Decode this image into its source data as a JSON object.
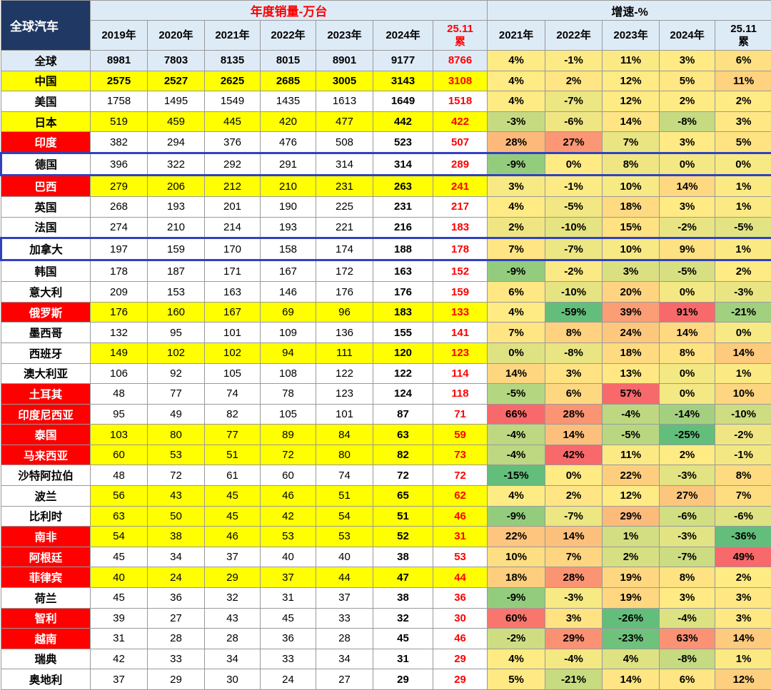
{
  "header": {
    "corner": "全球汽车",
    "sales_title": "年度销量-万台",
    "growth_title": "增速-%",
    "sales_years": [
      "2019年",
      "2020年",
      "2021年",
      "2022年",
      "2023年",
      "2024年",
      "25.11\n累"
    ],
    "growth_years": [
      "2021年",
      "2022年",
      "2023年",
      "2024年",
      "25.11\n累"
    ]
  },
  "colors": {
    "header_bg": "#DDEBF7",
    "corner_bg": "#1F3864",
    "accent_red": "#FF0000",
    "row_yellow": "#FFFF00",
    "global_row_blue": "#DEEBF7",
    "highlight_box_blue": "#3142BE",
    "scale_min_green": "#63BE7B",
    "scale_mid_yellow": "#FFEB84",
    "scale_max_red": "#F8696B"
  },
  "chart_data": {
    "type": "table",
    "title": "全球汽车 年度销量-万台 与 增速-%",
    "units": "万台",
    "sales_columns": [
      "2019年",
      "2020年",
      "2021年",
      "2022年",
      "2023年",
      "2024年",
      "25.11累"
    ],
    "growth_columns": [
      "2021年",
      "2022年",
      "2023年",
      "2024年",
      "25.11累"
    ],
    "rows": [
      {
        "region": "全球",
        "sales": [
          8981,
          7803,
          8135,
          8015,
          8901,
          9177,
          8766
        ],
        "growth_pct": [
          4,
          -1,
          11,
          3,
          6
        ],
        "style": {
          "label": "blue",
          "sales": "blue",
          "bold": true,
          "boxed": false
        }
      },
      {
        "region": "中国",
        "sales": [
          2575,
          2527,
          2625,
          2685,
          3005,
          3143,
          3108
        ],
        "growth_pct": [
          4,
          2,
          12,
          5,
          11
        ],
        "style": {
          "label": "yellow",
          "sales": "yellow",
          "bold": true,
          "boxed": false
        }
      },
      {
        "region": "美国",
        "sales": [
          1758,
          1495,
          1549,
          1435,
          1613,
          1649,
          1518
        ],
        "growth_pct": [
          4,
          -7,
          12,
          2,
          2
        ],
        "style": {
          "label": "white",
          "sales": "white",
          "bold": false,
          "boxed": false
        }
      },
      {
        "region": "日本",
        "sales": [
          519,
          459,
          445,
          420,
          477,
          442,
          422
        ],
        "growth_pct": [
          -3,
          -6,
          14,
          -8,
          3
        ],
        "style": {
          "label": "yellow",
          "sales": "yellow",
          "bold": false,
          "boxed": false
        }
      },
      {
        "region": "印度",
        "sales": [
          382,
          294,
          376,
          476,
          508,
          523,
          507
        ],
        "growth_pct": [
          28,
          27,
          7,
          3,
          5
        ],
        "style": {
          "label": "red",
          "sales": "white",
          "bold": false,
          "boxed": false
        }
      },
      {
        "region": "德国",
        "sales": [
          396,
          322,
          292,
          291,
          314,
          314,
          289
        ],
        "growth_pct": [
          -9,
          0,
          8,
          0,
          0
        ],
        "style": {
          "label": "white",
          "sales": "white",
          "bold": false,
          "boxed": true
        }
      },
      {
        "region": "巴西",
        "sales": [
          279,
          206,
          212,
          210,
          231,
          263,
          241
        ],
        "growth_pct": [
          3,
          -1,
          10,
          14,
          1
        ],
        "style": {
          "label": "red",
          "sales": "yellow",
          "bold": false,
          "boxed": false
        }
      },
      {
        "region": "英国",
        "sales": [
          268,
          193,
          201,
          190,
          225,
          231,
          217
        ],
        "growth_pct": [
          4,
          -5,
          18,
          3,
          1
        ],
        "style": {
          "label": "white",
          "sales": "white",
          "bold": false,
          "boxed": false
        }
      },
      {
        "region": "法国",
        "sales": [
          274,
          210,
          214,
          193,
          221,
          216,
          183
        ],
        "growth_pct": [
          2,
          -10,
          15,
          -2,
          -5
        ],
        "style": {
          "label": "white",
          "sales": "white",
          "bold": false,
          "boxed": false
        }
      },
      {
        "region": "加拿大",
        "sales": [
          197,
          159,
          170,
          158,
          174,
          188,
          178
        ],
        "growth_pct": [
          7,
          -7,
          10,
          9,
          1
        ],
        "style": {
          "label": "white",
          "sales": "white",
          "bold": false,
          "boxed": true
        }
      },
      {
        "region": "韩国",
        "sales": [
          178,
          187,
          171,
          167,
          172,
          163,
          152
        ],
        "growth_pct": [
          -9,
          -2,
          3,
          -5,
          2
        ],
        "style": {
          "label": "white",
          "sales": "white",
          "bold": false,
          "boxed": false
        }
      },
      {
        "region": "意大利",
        "sales": [
          209,
          153,
          163,
          146,
          176,
          176,
          159
        ],
        "growth_pct": [
          6,
          -10,
          20,
          0,
          -3
        ],
        "style": {
          "label": "white",
          "sales": "white",
          "bold": false,
          "boxed": false
        }
      },
      {
        "region": "俄罗斯",
        "sales": [
          176,
          160,
          167,
          69,
          96,
          183,
          133
        ],
        "growth_pct": [
          4,
          -59,
          39,
          91,
          -21
        ],
        "style": {
          "label": "red",
          "sales": "yellow",
          "bold": false,
          "boxed": false
        }
      },
      {
        "region": "墨西哥",
        "sales": [
          132,
          95,
          101,
          109,
          136,
          155,
          141
        ],
        "growth_pct": [
          7,
          8,
          24,
          14,
          0
        ],
        "style": {
          "label": "white",
          "sales": "white",
          "bold": false,
          "boxed": false
        }
      },
      {
        "region": "西班牙",
        "sales": [
          149,
          102,
          102,
          94,
          111,
          120,
          123
        ],
        "growth_pct": [
          0,
          -8,
          18,
          8,
          14
        ],
        "style": {
          "label": "white",
          "sales": "yellow",
          "bold": false,
          "boxed": false
        }
      },
      {
        "region": "澳大利亚",
        "sales": [
          106,
          92,
          105,
          108,
          122,
          122,
          114
        ],
        "growth_pct": [
          14,
          3,
          13,
          0,
          1
        ],
        "style": {
          "label": "white",
          "sales": "white",
          "bold": false,
          "boxed": false
        }
      },
      {
        "region": "土耳其",
        "sales": [
          48,
          77,
          74,
          78,
          123,
          124,
          118
        ],
        "growth_pct": [
          -5,
          6,
          57,
          0,
          10
        ],
        "style": {
          "label": "red",
          "sales": "white",
          "bold": false,
          "boxed": false
        }
      },
      {
        "region": "印度尼西亚",
        "sales": [
          95,
          49,
          82,
          105,
          101,
          87,
          71
        ],
        "growth_pct": [
          66,
          28,
          -4,
          -14,
          -10
        ],
        "style": {
          "label": "red",
          "sales": "white",
          "bold": false,
          "boxed": false
        }
      },
      {
        "region": "泰国",
        "sales": [
          103,
          80,
          77,
          89,
          84,
          63,
          59
        ],
        "growth_pct": [
          -4,
          14,
          -5,
          -25,
          -2
        ],
        "style": {
          "label": "red",
          "sales": "yellow",
          "bold": false,
          "boxed": false
        }
      },
      {
        "region": "马来西亚",
        "sales": [
          60,
          53,
          51,
          72,
          80,
          82,
          73
        ],
        "growth_pct": [
          -4,
          42,
          11,
          2,
          -1
        ],
        "style": {
          "label": "red",
          "sales": "yellow",
          "bold": false,
          "boxed": false
        }
      },
      {
        "region": "沙特阿拉伯",
        "sales": [
          48,
          72,
          61,
          60,
          74,
          72,
          72
        ],
        "growth_pct": [
          -15,
          0,
          22,
          -3,
          8
        ],
        "style": {
          "label": "white",
          "sales": "white",
          "bold": false,
          "boxed": false
        }
      },
      {
        "region": "波兰",
        "sales": [
          56,
          43,
          45,
          46,
          51,
          65,
          62
        ],
        "growth_pct": [
          4,
          2,
          12,
          27,
          7
        ],
        "style": {
          "label": "white",
          "sales": "yellow",
          "bold": false,
          "boxed": false
        }
      },
      {
        "region": "比利时",
        "sales": [
          63,
          50,
          45,
          42,
          54,
          51,
          46
        ],
        "growth_pct": [
          -9,
          -7,
          29,
          -6,
          -6
        ],
        "style": {
          "label": "white",
          "sales": "yellow",
          "bold": false,
          "boxed": false
        }
      },
      {
        "region": "南非",
        "sales": [
          54,
          38,
          46,
          53,
          53,
          52,
          31
        ],
        "growth_pct": [
          22,
          14,
          1,
          -3,
          -36
        ],
        "style": {
          "label": "red",
          "sales": "yellow",
          "bold": false,
          "boxed": false
        }
      },
      {
        "region": "阿根廷",
        "sales": [
          45,
          34,
          37,
          40,
          40,
          38,
          53
        ],
        "growth_pct": [
          10,
          7,
          2,
          -7,
          49
        ],
        "style": {
          "label": "red",
          "sales": "white",
          "bold": false,
          "boxed": false
        }
      },
      {
        "region": "菲律宾",
        "sales": [
          40,
          24,
          29,
          37,
          44,
          47,
          44
        ],
        "growth_pct": [
          18,
          28,
          19,
          8,
          2
        ],
        "style": {
          "label": "red",
          "sales": "yellow",
          "bold": false,
          "boxed": false
        }
      },
      {
        "region": "荷兰",
        "sales": [
          45,
          36,
          32,
          31,
          37,
          38,
          36
        ],
        "growth_pct": [
          -9,
          -3,
          19,
          3,
          3
        ],
        "style": {
          "label": "white",
          "sales": "white",
          "bold": false,
          "boxed": false
        }
      },
      {
        "region": "智利",
        "sales": [
          39,
          27,
          43,
          45,
          33,
          32,
          30
        ],
        "growth_pct": [
          60,
          3,
          -26,
          -4,
          3
        ],
        "style": {
          "label": "red",
          "sales": "white",
          "bold": false,
          "boxed": false
        }
      },
      {
        "region": "越南",
        "sales": [
          31,
          28,
          28,
          36,
          28,
          45,
          46
        ],
        "growth_pct": [
          -2,
          29,
          -23,
          63,
          14
        ],
        "style": {
          "label": "red",
          "sales": "white",
          "bold": false,
          "boxed": false
        }
      },
      {
        "region": "瑞典",
        "sales": [
          42,
          33,
          34,
          33,
          34,
          31,
          29
        ],
        "growth_pct": [
          4,
          -4,
          4,
          -8,
          1
        ],
        "style": {
          "label": "white",
          "sales": "white",
          "bold": false,
          "boxed": false
        }
      },
      {
        "region": "奥地利",
        "sales": [
          37,
          29,
          30,
          24,
          27,
          29,
          29
        ],
        "growth_pct": [
          5,
          -21,
          14,
          6,
          12
        ],
        "style": {
          "label": "white",
          "sales": "white",
          "bold": false,
          "boxed": false
        }
      }
    ]
  }
}
